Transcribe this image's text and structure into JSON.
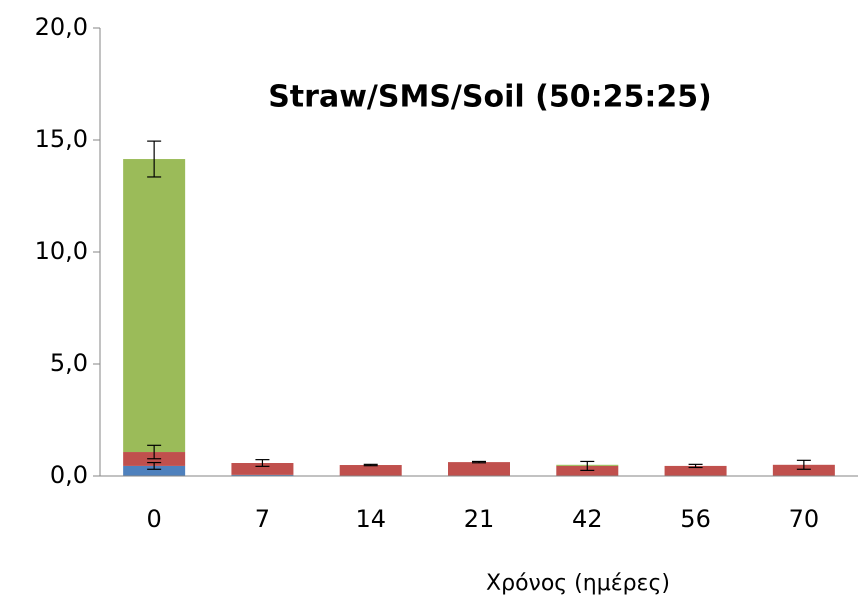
{
  "chart_data": {
    "type": "stacked_bar",
    "title": "Straw/SMS/Soil (50:25:25)",
    "xlabel": "Χρόνος (ημέρες)",
    "categories": [
      "0",
      "7",
      "14",
      "21",
      "42",
      "56",
      "70"
    ],
    "series": [
      {
        "color": "#4f81bd",
        "values": [
          0.45,
          0.05,
          0.02,
          0.02,
          0.02,
          0.02,
          0.02
        ],
        "errors": [
          0.15,
          null,
          null,
          null,
          null,
          null,
          null
        ]
      },
      {
        "color": "#c0504d",
        "values": [
          0.62,
          0.53,
          0.47,
          0.6,
          0.43,
          0.43,
          0.48
        ],
        "errors": [
          0.3,
          0.15,
          0.03,
          0.03,
          0.2,
          0.07,
          0.2
        ]
      },
      {
        "color": "#9bbb59",
        "values": [
          13.08,
          0,
          0,
          0,
          0.05,
          0,
          0
        ],
        "errors": [
          0.8,
          null,
          null,
          null,
          null,
          null,
          null
        ]
      }
    ],
    "ylim": [
      0,
      20
    ],
    "yticks": [
      {
        "value": 0,
        "label": "0,0"
      },
      {
        "value": 5,
        "label": "5,0"
      },
      {
        "value": 10,
        "label": "10,0"
      },
      {
        "value": 15,
        "label": "15,0"
      },
      {
        "value": 20,
        "label": "20,0"
      }
    ]
  }
}
